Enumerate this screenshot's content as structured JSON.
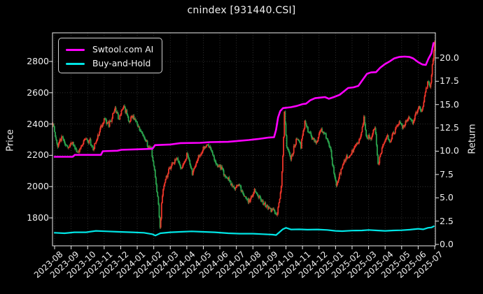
{
  "title": "cnindex [931440.CSI]",
  "axes": {
    "left_label": "Price",
    "right_label": "Return"
  },
  "legend": {
    "entries": [
      {
        "label": "Swtool.com AI",
        "color": "#ff00ff"
      },
      {
        "label": "Buy-and-Hold",
        "color": "#00e5e5"
      }
    ]
  },
  "chart_data": {
    "type": "candlestick+line",
    "title": "cnindex [931440.CSI]",
    "grid": true,
    "legend_position": "upper left",
    "x_axis": {
      "tick_labels": [
        "2023-08",
        "2023-09",
        "2023-10",
        "2023-11",
        "2023-12",
        "2024-01",
        "2024-02",
        "2024-03",
        "2024-04",
        "2024-05",
        "2024-06",
        "2024-07",
        "2024-08",
        "2024-09",
        "2024-10",
        "2024-11",
        "2024-12",
        "2025-01",
        "2025-02",
        "2025-03",
        "2025-04",
        "2025-05",
        "2025-06",
        "2025-07"
      ]
    },
    "price_axis": {
      "label": "Price",
      "ticks": [
        2800,
        2600,
        2400,
        2200,
        2000,
        1800
      ],
      "ylim": [
        1620,
        2985
      ]
    },
    "return_axis": {
      "label": "Return",
      "ticks": [
        20.0,
        17.5,
        15.0,
        12.5,
        10.0,
        7.5,
        5.0,
        2.5,
        0.0
      ],
      "ylim": [
        -0.15,
        22.85
      ]
    },
    "candles": {
      "convention": "red-up-green-down",
      "up_color": "#ee3529",
      "down_color": "#2aa44d",
      "monthly_price_path": [
        [
          -0.08,
          2390
        ],
        [
          0.12,
          2270
        ],
        [
          0.5,
          2310
        ],
        [
          0.8,
          2245
        ],
        [
          1.1,
          2285
        ],
        [
          1.35,
          2205
        ],
        [
          1.8,
          2300
        ],
        [
          2.1,
          2290
        ],
        [
          2.35,
          2240
        ],
        [
          2.8,
          2380
        ],
        [
          3.0,
          2430
        ],
        [
          3.3,
          2390
        ],
        [
          3.65,
          2500
        ],
        [
          3.9,
          2440
        ],
        [
          4.15,
          2515
        ],
        [
          4.5,
          2420
        ],
        [
          4.75,
          2460
        ],
        [
          5.05,
          2380
        ],
        [
          5.45,
          2310
        ],
        [
          5.85,
          2230
        ],
        [
          6.1,
          2050
        ],
        [
          6.3,
          1870
        ],
        [
          6.38,
          1740
        ],
        [
          6.55,
          1990
        ],
        [
          6.85,
          2090
        ],
        [
          7.1,
          2140
        ],
        [
          7.4,
          2190
        ],
        [
          7.7,
          2110
        ],
        [
          8.05,
          2210
        ],
        [
          8.35,
          2080
        ],
        [
          8.7,
          2190
        ],
        [
          9.0,
          2250
        ],
        [
          9.35,
          2260
        ],
        [
          9.7,
          2160
        ],
        [
          10.1,
          2110
        ],
        [
          10.5,
          2040
        ],
        [
          10.9,
          1990
        ],
        [
          11.15,
          2020
        ],
        [
          11.5,
          1930
        ],
        [
          11.8,
          1905
        ],
        [
          12.1,
          1975
        ],
        [
          12.45,
          1920
        ],
        [
          12.8,
          1865
        ],
        [
          13.1,
          1855
        ],
        [
          13.45,
          1825
        ],
        [
          13.7,
          1990
        ],
        [
          13.82,
          2210
        ],
        [
          13.9,
          2480
        ],
        [
          14.05,
          2260
        ],
        [
          14.3,
          2175
        ],
        [
          14.65,
          2310
        ],
        [
          14.9,
          2260
        ],
        [
          15.15,
          2415
        ],
        [
          15.5,
          2330
        ],
        [
          15.8,
          2275
        ],
        [
          16.1,
          2360
        ],
        [
          16.4,
          2330
        ],
        [
          16.7,
          2230
        ],
        [
          16.95,
          2060
        ],
        [
          17.1,
          2010
        ],
        [
          17.35,
          2120
        ],
        [
          17.6,
          2180
        ],
        [
          17.9,
          2210
        ],
        [
          18.2,
          2260
        ],
        [
          18.5,
          2300
        ],
        [
          18.72,
          2450
        ],
        [
          18.85,
          2330
        ],
        [
          19.1,
          2300
        ],
        [
          19.4,
          2380
        ],
        [
          19.58,
          2130
        ],
        [
          19.8,
          2240
        ],
        [
          20.1,
          2330
        ],
        [
          20.3,
          2290
        ],
        [
          20.45,
          2330
        ],
        [
          20.8,
          2405
        ],
        [
          21.1,
          2380
        ],
        [
          21.45,
          2445
        ],
        [
          21.7,
          2410
        ],
        [
          22.0,
          2510
        ],
        [
          22.2,
          2475
        ],
        [
          22.45,
          2610
        ],
        [
          22.6,
          2690
        ],
        [
          22.72,
          2620
        ],
        [
          22.85,
          2760
        ],
        [
          23.0,
          2920
        ]
      ]
    },
    "series": [
      {
        "name": "Swtool.com AI",
        "color": "#ff00ff",
        "axis": "Return",
        "points": [
          [
            0,
            9.4
          ],
          [
            1.1,
            9.4
          ],
          [
            1.22,
            9.6
          ],
          [
            2.8,
            9.6
          ],
          [
            2.92,
            10.0
          ],
          [
            3.8,
            10.05
          ],
          [
            4.05,
            10.15
          ],
          [
            5.0,
            10.2
          ],
          [
            5.92,
            10.25
          ],
          [
            6.08,
            10.65
          ],
          [
            7.0,
            10.72
          ],
          [
            7.62,
            10.87
          ],
          [
            8.8,
            10.9
          ],
          [
            9.4,
            10.97
          ],
          [
            10.5,
            11.0
          ],
          [
            11.1,
            11.1
          ],
          [
            11.75,
            11.2
          ],
          [
            12.3,
            11.3
          ],
          [
            12.9,
            11.45
          ],
          [
            13.28,
            11.5
          ],
          [
            13.4,
            12.3
          ],
          [
            13.52,
            13.6
          ],
          [
            13.65,
            14.3
          ],
          [
            13.82,
            14.62
          ],
          [
            14.3,
            14.72
          ],
          [
            14.66,
            14.85
          ],
          [
            15.0,
            15.05
          ],
          [
            15.22,
            15.1
          ],
          [
            15.46,
            15.45
          ],
          [
            15.76,
            15.68
          ],
          [
            16.1,
            15.75
          ],
          [
            16.36,
            15.8
          ],
          [
            16.6,
            15.62
          ],
          [
            16.9,
            15.8
          ],
          [
            17.25,
            16.05
          ],
          [
            17.53,
            16.45
          ],
          [
            17.76,
            16.78
          ],
          [
            18.1,
            16.85
          ],
          [
            18.38,
            17.0
          ],
          [
            18.64,
            17.65
          ],
          [
            18.9,
            18.3
          ],
          [
            19.14,
            18.45
          ],
          [
            19.45,
            18.48
          ],
          [
            19.7,
            18.95
          ],
          [
            19.96,
            19.3
          ],
          [
            20.25,
            19.6
          ],
          [
            20.55,
            19.95
          ],
          [
            20.84,
            20.1
          ],
          [
            21.18,
            20.15
          ],
          [
            21.48,
            20.1
          ],
          [
            21.7,
            19.95
          ],
          [
            22.0,
            19.55
          ],
          [
            22.25,
            19.3
          ],
          [
            22.46,
            19.25
          ],
          [
            22.62,
            19.9
          ],
          [
            22.8,
            20.5
          ],
          [
            22.93,
            21.6
          ]
        ]
      },
      {
        "name": "Buy-and-Hold",
        "color": "#00e5e5",
        "axis": "Return",
        "points": [
          [
            0,
            1.25
          ],
          [
            0.6,
            1.2
          ],
          [
            1.2,
            1.3
          ],
          [
            1.9,
            1.3
          ],
          [
            2.5,
            1.45
          ],
          [
            3.2,
            1.4
          ],
          [
            3.9,
            1.35
          ],
          [
            4.7,
            1.3
          ],
          [
            5.4,
            1.25
          ],
          [
            5.9,
            1.1
          ],
          [
            6.1,
            0.95
          ],
          [
            6.4,
            1.2
          ],
          [
            7.0,
            1.3
          ],
          [
            7.6,
            1.35
          ],
          [
            8.3,
            1.4
          ],
          [
            9.0,
            1.35
          ],
          [
            9.7,
            1.3
          ],
          [
            10.5,
            1.2
          ],
          [
            11.2,
            1.15
          ],
          [
            12.0,
            1.15
          ],
          [
            12.6,
            1.1
          ],
          [
            13.2,
            1.05
          ],
          [
            13.4,
            1.0
          ],
          [
            13.6,
            1.3
          ],
          [
            13.8,
            1.62
          ],
          [
            14.0,
            1.78
          ],
          [
            14.3,
            1.6
          ],
          [
            14.8,
            1.62
          ],
          [
            15.3,
            1.58
          ],
          [
            15.9,
            1.6
          ],
          [
            16.5,
            1.55
          ],
          [
            17.0,
            1.45
          ],
          [
            17.4,
            1.42
          ],
          [
            18.0,
            1.48
          ],
          [
            18.6,
            1.5
          ],
          [
            19.0,
            1.55
          ],
          [
            19.5,
            1.5
          ],
          [
            20.0,
            1.45
          ],
          [
            20.5,
            1.5
          ],
          [
            21.0,
            1.52
          ],
          [
            21.5,
            1.58
          ],
          [
            22.0,
            1.68
          ],
          [
            22.3,
            1.62
          ],
          [
            22.6,
            1.78
          ],
          [
            22.8,
            1.82
          ],
          [
            22.95,
            1.95
          ]
        ]
      }
    ]
  }
}
